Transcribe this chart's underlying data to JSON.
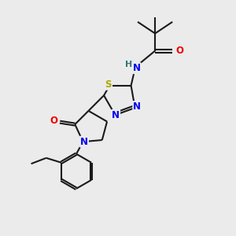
{
  "background_color": "#ebebeb",
  "atom_colors": {
    "C": "#1a1a1a",
    "N": "#0000ee",
    "O": "#ee0000",
    "S": "#aaaa00",
    "H": "#337777"
  },
  "figsize": [
    3.0,
    3.0
  ],
  "dpi": 100,
  "xlim": [
    0,
    10
  ],
  "ylim": [
    0,
    10
  ]
}
